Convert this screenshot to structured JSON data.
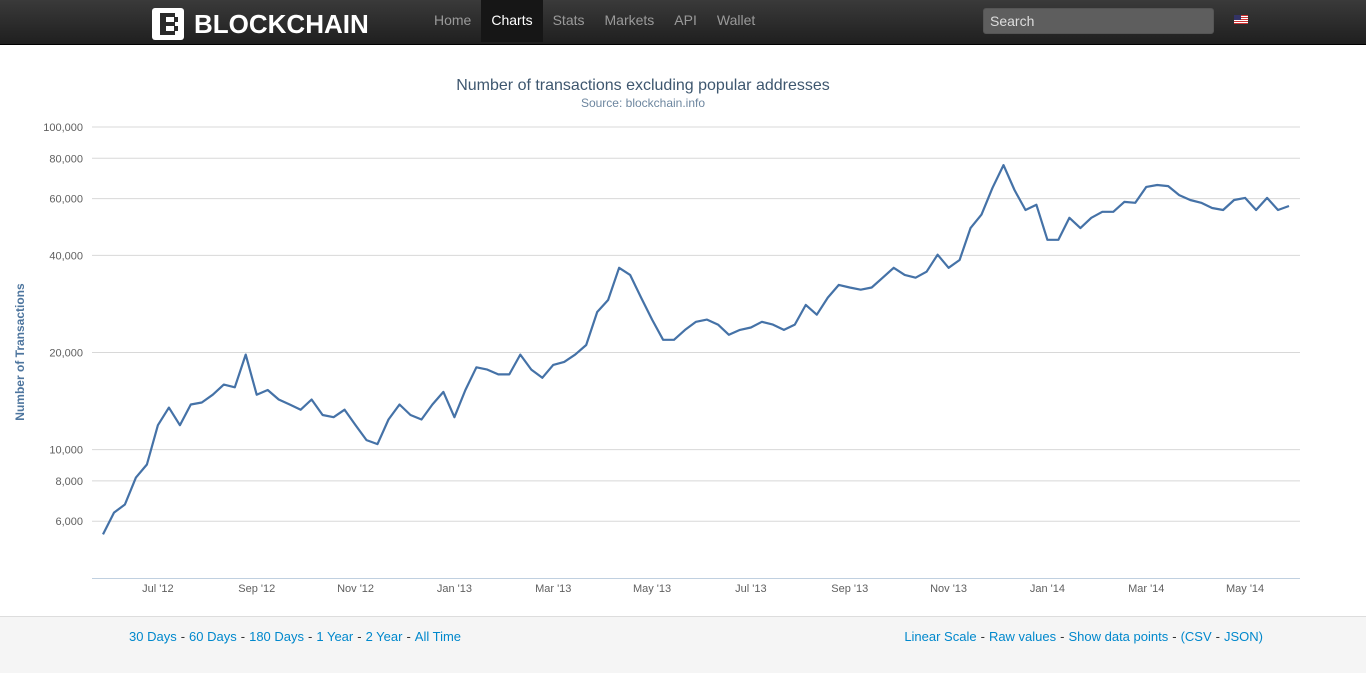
{
  "nav": {
    "brand": "BLOCKCHAIN",
    "items": [
      "Home",
      "Charts",
      "Stats",
      "Markets",
      "API",
      "Wallet"
    ],
    "active": 1,
    "search_placeholder": "Search"
  },
  "chart_data": {
    "type": "line",
    "title": "Number of transactions excluding popular addresses",
    "subtitle": "Source: blockchain.info",
    "y_label": "Number of Transactions",
    "log_scale": true,
    "grid": true,
    "color": "#4572a7",
    "categories": [
      null,
      null,
      null,
      null,
      null,
      "Jul '12",
      null,
      null,
      null,
      null,
      null,
      null,
      null,
      null,
      "Sep '12",
      null,
      null,
      null,
      null,
      null,
      null,
      null,
      null,
      "Nov '12",
      null,
      null,
      null,
      null,
      null,
      null,
      null,
      null,
      "Jan '13",
      null,
      null,
      null,
      null,
      null,
      null,
      null,
      null,
      "Mar '13",
      null,
      null,
      null,
      null,
      null,
      null,
      null,
      null,
      "May '13",
      null,
      null,
      null,
      null,
      null,
      null,
      null,
      null,
      "Jul '13",
      null,
      null,
      null,
      null,
      null,
      null,
      null,
      null,
      "Sep '13",
      null,
      null,
      null,
      null,
      null,
      null,
      null,
      null,
      "Nov '13",
      null,
      null,
      null,
      null,
      null,
      null,
      null,
      null,
      "Jan '14",
      null,
      null,
      null,
      null,
      null,
      null,
      null,
      null,
      "Mar '14",
      null,
      null,
      null,
      null,
      null,
      null,
      null,
      null,
      "May '14",
      null,
      null,
      null,
      null
    ],
    "values": [
      5460,
      6380,
      6760,
      8190,
      8990,
      11900,
      13500,
      11900,
      13800,
      14000,
      14800,
      15900,
      15600,
      19700,
      14800,
      15300,
      14300,
      13800,
      13300,
      14300,
      12800,
      12600,
      13300,
      11900,
      10700,
      10400,
      12400,
      13800,
      12800,
      12400,
      13800,
      15100,
      12600,
      15300,
      18000,
      17700,
      17100,
      17100,
      19700,
      17700,
      16700,
      18300,
      18700,
      19700,
      21100,
      26700,
      29100,
      36600,
      34800,
      29600,
      25300,
      21900,
      21900,
      23500,
      24900,
      25300,
      24400,
      22700,
      23500,
      23900,
      24900,
      24400,
      23500,
      24400,
      28100,
      26200,
      29600,
      32400,
      31800,
      31300,
      31800,
      34100,
      36600,
      34800,
      34100,
      35600,
      40200,
      36600,
      38700,
      48600,
      53500,
      64800,
      76200,
      63800,
      55300,
      57400,
      44700,
      44700,
      52300,
      48600,
      52300,
      54600,
      54600,
      58600,
      58200,
      65200,
      66100,
      65600,
      61500,
      59400,
      58200,
      56100,
      55300,
      59400,
      60300,
      55300,
      60300,
      55300,
      56900
    ],
    "ylim": [
      4000,
      100000
    ],
    "yticks": [
      {
        "value": 6000,
        "label": "6,000"
      },
      {
        "value": 8000,
        "label": "8,000"
      },
      {
        "value": 10000,
        "label": "10,000"
      },
      {
        "value": 20000,
        "label": "20,000"
      },
      {
        "value": 40000,
        "label": "40,000"
      },
      {
        "value": 60000,
        "label": "60,000"
      },
      {
        "value": 80000,
        "label": "80,000"
      },
      {
        "value": 100000,
        "label": "100,000"
      }
    ]
  },
  "footer": {
    "ranges": [
      "30 Days",
      "60 Days",
      "180 Days",
      "1 Year",
      "2 Year",
      "All Time"
    ],
    "separator": "-",
    "options": [
      "Linear Scale",
      "Raw values",
      "Show data points"
    ],
    "open": "(",
    "exports": [
      "CSV",
      "JSON"
    ],
    "close": ")"
  }
}
